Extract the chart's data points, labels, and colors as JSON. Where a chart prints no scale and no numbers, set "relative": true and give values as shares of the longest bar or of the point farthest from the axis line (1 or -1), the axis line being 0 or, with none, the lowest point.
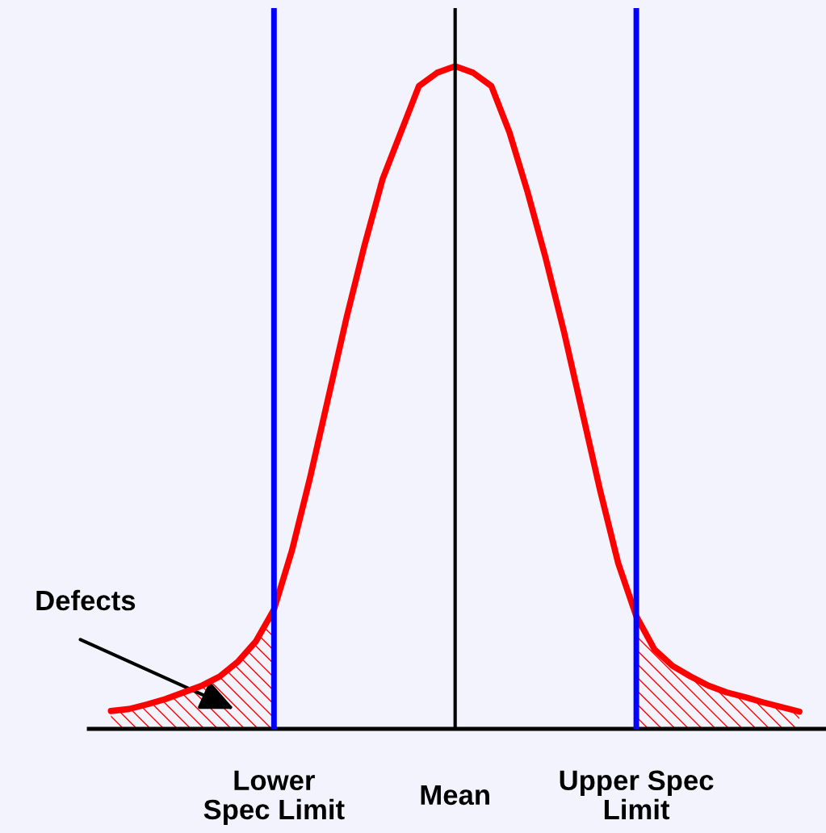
{
  "chart_data": {
    "type": "line",
    "relative": true,
    "categories": [
      null,
      null,
      null,
      null,
      null,
      null,
      null,
      null,
      null,
      "Lower\nSpec Limit",
      null,
      null,
      null,
      null,
      null,
      null,
      null,
      null,
      null,
      "Mean",
      null,
      null,
      null,
      null,
      null,
      null,
      null,
      null,
      null,
      "Upper Spec\nLimit",
      null,
      null,
      null,
      null,
      null,
      null,
      null,
      null,
      null
    ],
    "series": [
      {
        "color": "#ff0000",
        "values": [
          0.027,
          0.03,
          0.037,
          0.045,
          0.055,
          0.065,
          0.079,
          0.101,
          0.132,
          0.18,
          0.27,
          0.38,
          0.5,
          0.62,
          0.73,
          0.83,
          0.9,
          0.97,
          0.99,
          1,
          0.99,
          0.97,
          0.9,
          0.81,
          0.71,
          0.6,
          0.48,
          0.36,
          0.25,
          0.17,
          0.12,
          0.095,
          0.079,
          0.065,
          0.055,
          0.048,
          0.04,
          0.033,
          0.026
        ]
      },
      {
        "type": "area",
        "color": "#ff0000",
        "values": [
          0.027,
          0.03,
          0.037,
          0.045,
          0.055,
          0.065,
          0.079,
          0.101,
          0.132,
          0.18,
          null,
          null,
          null,
          null,
          null,
          null,
          null,
          null,
          null,
          null,
          null,
          null,
          null,
          null,
          null,
          null,
          null,
          null,
          null,
          null,
          null,
          null,
          null,
          null,
          null,
          null,
          null,
          null,
          null
        ]
      },
      {
        "type": "area",
        "color": "#ff0000",
        "values": [
          null,
          null,
          null,
          null,
          null,
          null,
          null,
          null,
          null,
          null,
          null,
          null,
          null,
          null,
          null,
          null,
          null,
          null,
          null,
          null,
          null,
          null,
          null,
          null,
          null,
          null,
          null,
          null,
          null,
          0.17,
          0.12,
          0.095,
          0.079,
          0.065,
          0.055,
          0.048,
          0.04,
          0.033,
          0.026
        ]
      }
    ],
    "ref_lines": [
      {
        "axis": "x",
        "value": "Lower\nSpec Limit",
        "color": "#0000ff"
      },
      {
        "axis": "x",
        "value": "Mean",
        "color": "#000000"
      },
      {
        "axis": "x",
        "value": "Upper Spec\nLimit",
        "color": "#0000ff"
      }
    ],
    "annotations": [
      "Defects"
    ],
    "tick_labels": "x",
    "marker": "none",
    "line_style": "solid"
  }
}
